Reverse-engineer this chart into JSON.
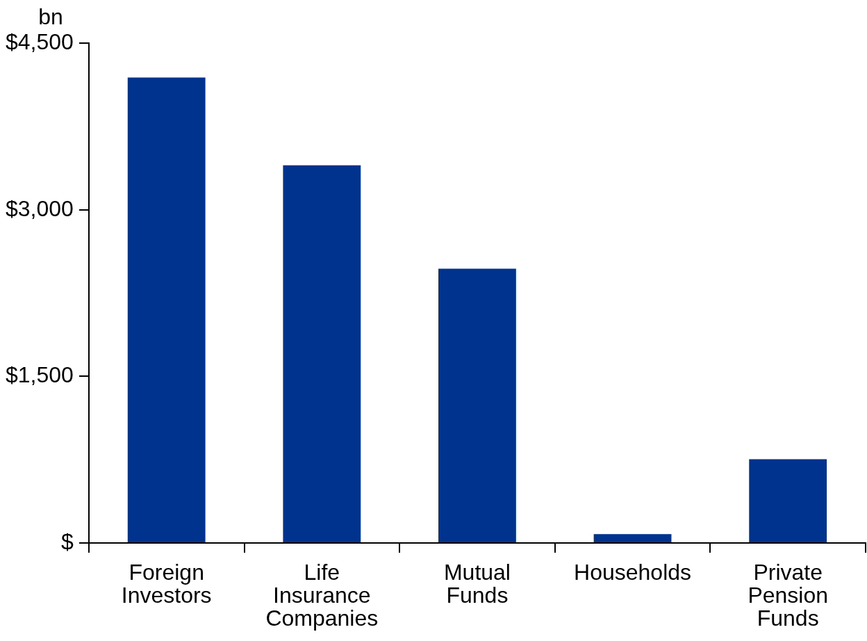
{
  "chart_data": {
    "type": "bar",
    "ylabel": "bn",
    "categories": [
      "Foreign Investors",
      "Life Insurance Companies",
      "Mutual Funds",
      "Households",
      "Private Pension Funds"
    ],
    "values": [
      4190,
      3400,
      2470,
      80,
      755
    ],
    "color": "#00338d",
    "ylim": [
      0,
      4500
    ],
    "yticks": [
      {
        "value": 0,
        "label": "$"
      },
      {
        "value": 1500,
        "label": "$1,500"
      },
      {
        "value": 3000,
        "label": "$3,000"
      },
      {
        "value": 4500,
        "label": "$4,500"
      }
    ],
    "grid": false,
    "legend": false
  }
}
